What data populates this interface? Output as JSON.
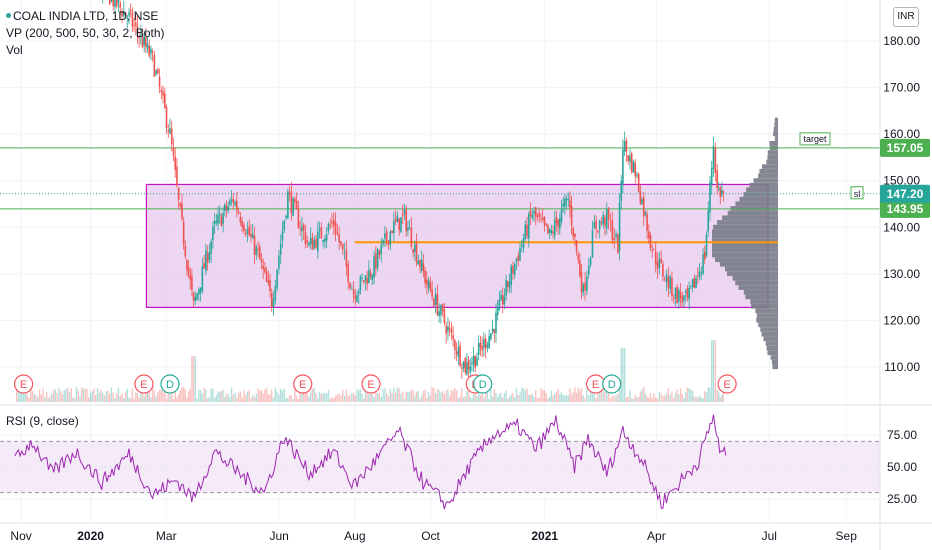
{
  "symbol_legend": "COAL INDIA LTD, 1D, NSE",
  "vp_legend": "VP (200, 500, 50, 30, 2, Both)",
  "vol_legend": "Vol",
  "currency": "INR",
  "rsi_legend": "RSI (9, close)",
  "colors": {
    "up": "#26a69a",
    "down": "#ef5350",
    "range_box": "#c215c8",
    "range_fill": "#e6c8ee",
    "hline": "#4caf50",
    "poc": "#ff9800",
    "profile": "#787b86",
    "rsi_line": "#9c27b0",
    "rsi_band": "#f3e5f5"
  },
  "chart_data": [
    {
      "type": "candlestick",
      "title": "COAL INDIA LTD, 1D, NSE",
      "ylim": [
        102,
        192
      ],
      "y_ticks": [
        110,
        120,
        130,
        140,
        150,
        160,
        170,
        180
      ],
      "y_tick_labels": [
        "110.00",
        "120.00",
        "130.00",
        "140.00",
        "150.00",
        "160.00",
        "170.00",
        "180.00"
      ],
      "x_labels": [
        "Nov",
        "2020",
        "Mar",
        "Jun",
        "Aug",
        "Oct",
        "2021",
        "Apr",
        "Jul",
        "Sep"
      ],
      "range_box": {
        "low": 122.8,
        "high": 149.2
      },
      "point_of_control": 136.8,
      "horizontal_lines": [
        {
          "value": 157.05,
          "label": "157.05",
          "note": "target"
        },
        {
          "value": 143.95,
          "label": "143.95"
        }
      ],
      "last_price": {
        "value": 147.2,
        "label": "147.20",
        "note": "sl"
      },
      "price_path": [
        [
          "2019-11-01",
          196
        ],
        [
          "2019-12-15",
          196
        ],
        [
          "2020-01-15",
          190
        ],
        [
          "2020-02-01",
          185
        ],
        [
          "2020-02-20",
          176
        ],
        [
          "2020-03-05",
          160
        ],
        [
          "2020-03-12",
          145
        ],
        [
          "2020-03-24",
          123
        ],
        [
          "2020-04-10",
          140
        ],
        [
          "2020-04-25",
          146
        ],
        [
          "2020-05-15",
          134
        ],
        [
          "2020-05-26",
          124
        ],
        [
          "2020-06-08",
          147
        ],
        [
          "2020-06-25",
          136
        ],
        [
          "2020-07-15",
          141
        ],
        [
          "2020-07-31",
          126
        ],
        [
          "2020-08-15",
          131
        ],
        [
          "2020-08-31",
          140
        ],
        [
          "2020-09-10",
          142
        ],
        [
          "2020-09-28",
          128
        ],
        [
          "2020-10-15",
          118
        ],
        [
          "2020-10-29",
          110
        ],
        [
          "2020-11-06",
          112
        ],
        [
          "2020-11-20",
          118
        ],
        [
          "2020-12-05",
          130
        ],
        [
          "2020-12-22",
          143
        ],
        [
          "2021-01-05",
          138
        ],
        [
          "2021-01-20",
          146
        ],
        [
          "2021-02-01",
          126
        ],
        [
          "2021-02-10",
          140
        ],
        [
          "2021-02-20",
          142
        ],
        [
          "2021-03-01",
          136
        ],
        [
          "2021-03-05",
          158
        ],
        [
          "2021-03-15",
          152
        ],
        [
          "2021-03-30",
          134
        ],
        [
          "2021-04-15",
          126
        ],
        [
          "2021-04-26",
          124
        ],
        [
          "2021-05-10",
          134
        ],
        [
          "2021-05-17",
          158
        ],
        [
          "2021-05-20",
          148
        ],
        [
          "2021-05-25",
          147.2
        ]
      ],
      "volume_spike_dates": [
        "2020-03-24",
        "2021-03-05",
        "2021-05-17"
      ],
      "event_markers": [
        {
          "date": "2019-11-08",
          "label": "E"
        },
        {
          "date": "2020-02-13",
          "label": "E"
        },
        {
          "date": "2020-03-05",
          "label": "D"
        },
        {
          "date": "2020-06-20",
          "label": "E"
        },
        {
          "date": "2020-08-14",
          "label": "E"
        },
        {
          "date": "2020-11-06",
          "label": "E"
        },
        {
          "date": "2020-11-12",
          "label": "D"
        },
        {
          "date": "2021-02-11",
          "label": "E"
        },
        {
          "date": "2021-02-24",
          "label": "D"
        },
        {
          "date": "2021-05-28",
          "label": "E"
        }
      ]
    },
    {
      "type": "line",
      "title": "RSI (9, close)",
      "ylim": [
        13,
        97
      ],
      "y_ticks": [
        25,
        50,
        75
      ],
      "y_tick_labels": [
        "25.00",
        "50.00",
        "75.00"
      ],
      "band": [
        30,
        70
      ],
      "series": [
        {
          "points": [
            [
              "2019-11-01",
              55
            ],
            [
              "2019-11-15",
              70
            ],
            [
              "2019-12-01",
              45
            ],
            [
              "2019-12-20",
              62
            ],
            [
              "2020-01-10",
              38
            ],
            [
              "2020-02-01",
              60
            ],
            [
              "2020-02-20",
              28
            ],
            [
              "2020-03-10",
              40
            ],
            [
              "2020-03-24",
              25
            ],
            [
              "2020-04-10",
              62
            ],
            [
              "2020-05-01",
              44
            ],
            [
              "2020-05-20",
              30
            ],
            [
              "2020-06-05",
              74
            ],
            [
              "2020-06-25",
              45
            ],
            [
              "2020-07-15",
              62
            ],
            [
              "2020-07-31",
              35
            ],
            [
              "2020-08-20",
              58
            ],
            [
              "2020-09-05",
              78
            ],
            [
              "2020-09-25",
              38
            ],
            [
              "2020-10-15",
              20
            ],
            [
              "2020-11-01",
              50
            ],
            [
              "2020-11-20",
              75
            ],
            [
              "2020-12-10",
              82
            ],
            [
              "2020-12-25",
              64
            ],
            [
              "2021-01-10",
              86
            ],
            [
              "2021-01-25",
              50
            ],
            [
              "2021-02-05",
              72
            ],
            [
              "2021-02-20",
              45
            ],
            [
              "2021-03-05",
              78
            ],
            [
              "2021-03-20",
              56
            ],
            [
              "2021-04-05",
              22
            ],
            [
              "2021-04-20",
              38
            ],
            [
              "2021-05-05",
              55
            ],
            [
              "2021-05-17",
              90
            ],
            [
              "2021-05-22",
              62
            ],
            [
              "2021-05-27",
              59
            ]
          ]
        }
      ]
    }
  ]
}
